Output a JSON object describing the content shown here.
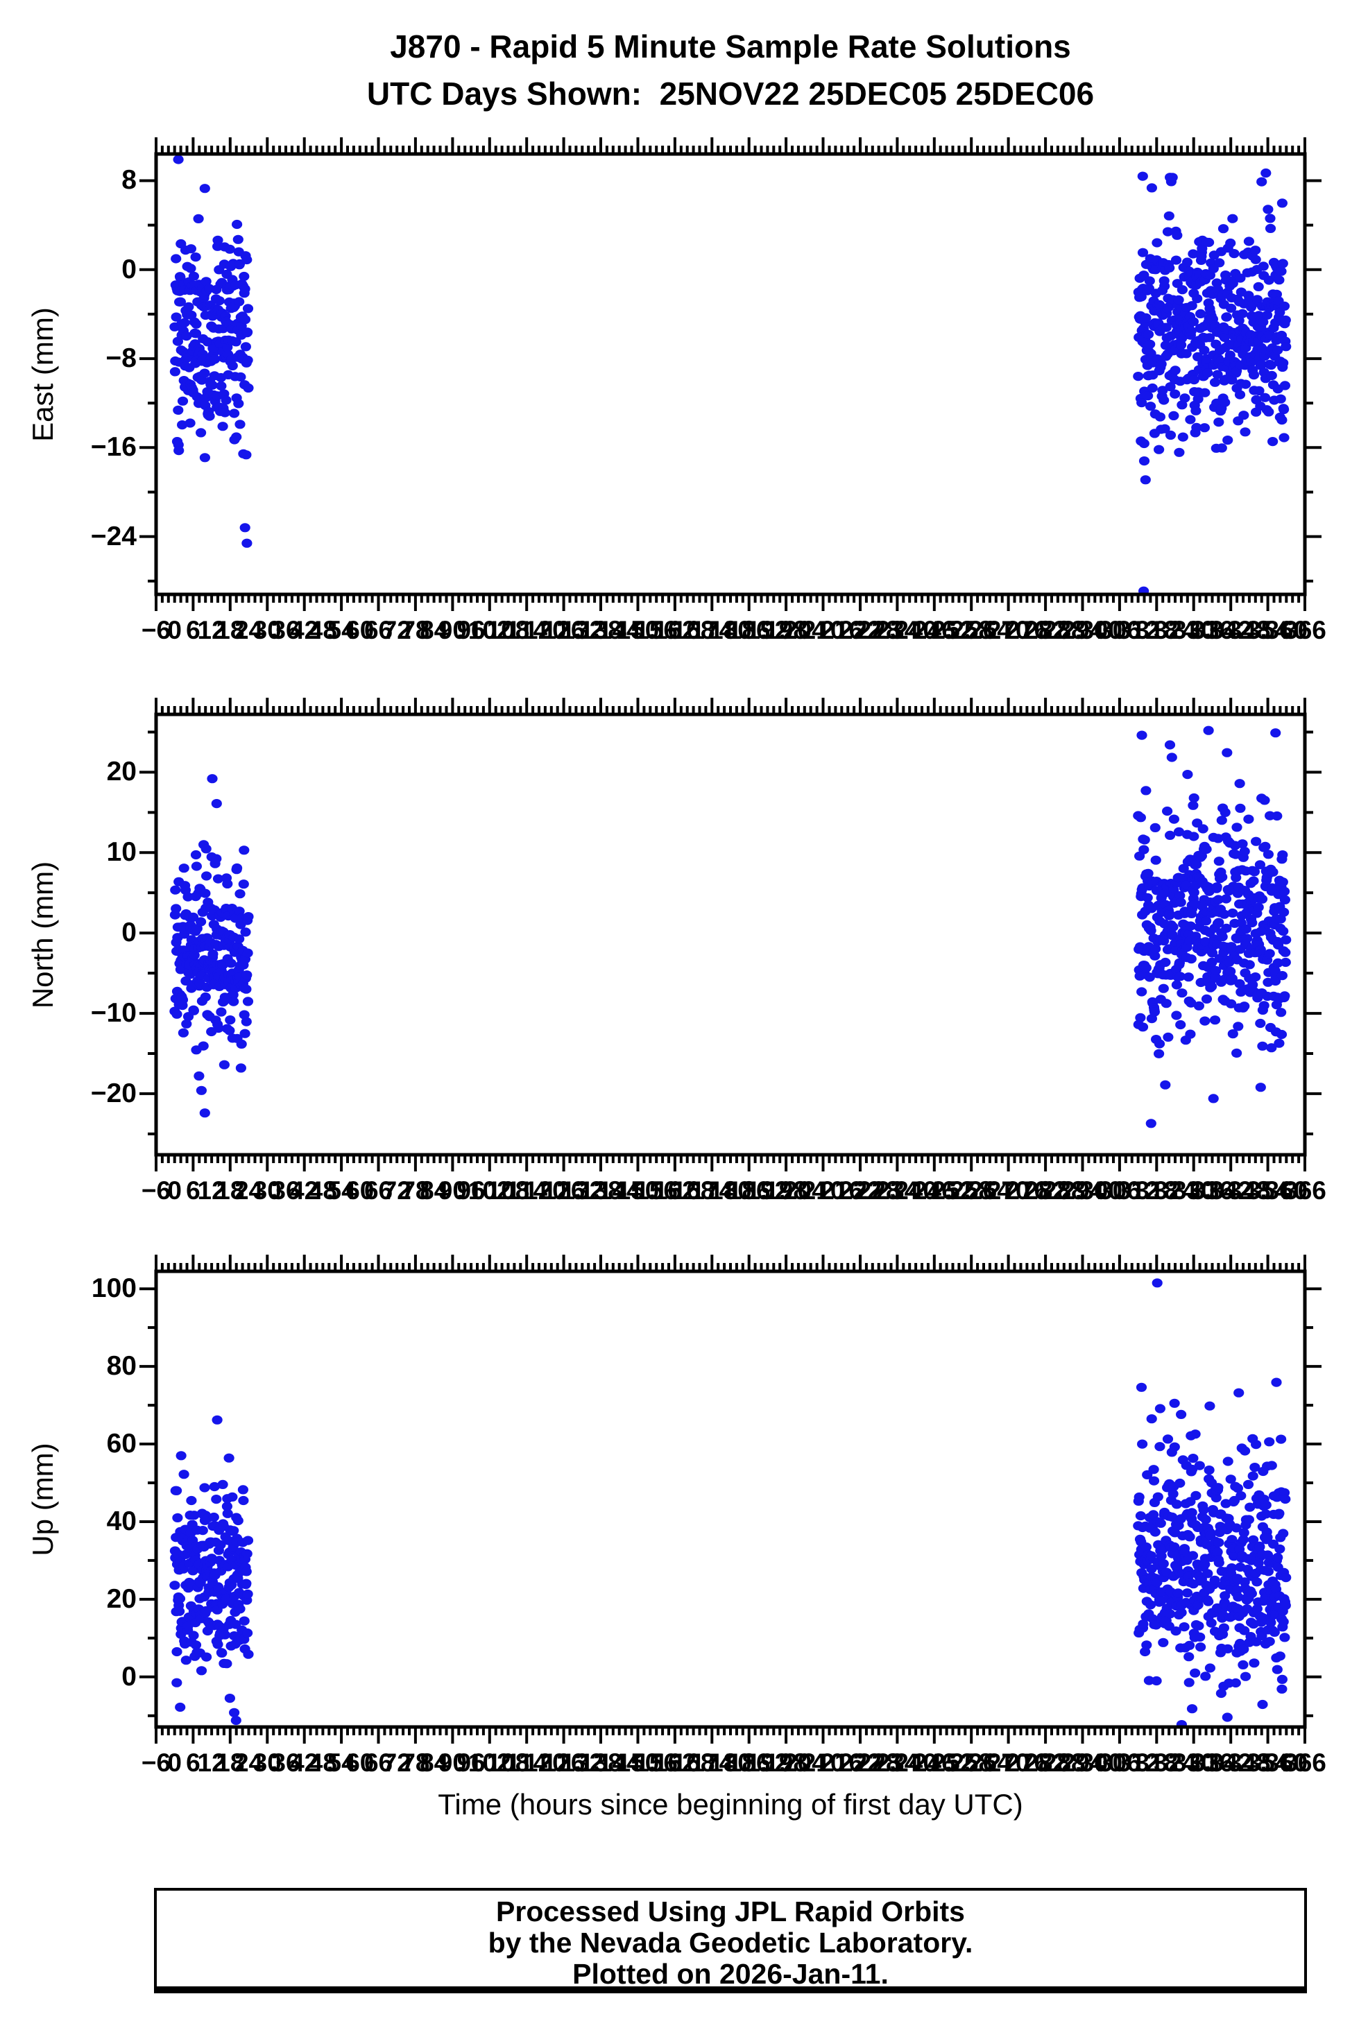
{
  "title": "J870 - Rapid 5 Minute Sample Rate Solutions",
  "subtitle": "UTC Days Shown:  25NOV22 25DEC05 25DEC06",
  "footer": {
    "lines": [
      "Processed Using JPL Rapid Orbits",
      "by the Nevada Geodetic Laboratory.",
      "Plotted on 2026-Jan-11."
    ]
  },
  "colors": {
    "point": "#1515eb",
    "axis": "#000000",
    "background": "#ffffff"
  },
  "chart_data": {
    "type": "scatter",
    "grid": false,
    "legend": null,
    "station": "J870",
    "xlabel": "Time (hours since beginning of first day UTC)",
    "x_axis": {
      "min": -6,
      "max": 366,
      "minor_tick_step": 2,
      "major_tick_step": 12,
      "tick_labels": [
        -6,
        0,
        6,
        12,
        18,
        24,
        30,
        36,
        42,
        48,
        54,
        60,
        66,
        72,
        78,
        84,
        90,
        96,
        102,
        108,
        114,
        120,
        126,
        132,
        138,
        144,
        150,
        156,
        162,
        168,
        174,
        180,
        186,
        192,
        198,
        204,
        210,
        216,
        222,
        228,
        234,
        240,
        246,
        252,
        258,
        264,
        270,
        276,
        282,
        288,
        294,
        300,
        306,
        312,
        318,
        324,
        330,
        336,
        342,
        348,
        354,
        360,
        366
      ]
    },
    "panels": [
      {
        "name": "East",
        "ylabel": "East (mm)",
        "y_min": -29.2,
        "y_max": 10.4,
        "y_tick_labels": [
          8,
          0,
          -8,
          -16,
          -24
        ],
        "y_minor_ticks": [
          4,
          -4,
          -12,
          -20,
          -28
        ],
        "clusters": [
          {
            "seed": 101,
            "hours": [
              0,
              23.92
            ],
            "n": 240,
            "mean": -6.0,
            "std": 4.6,
            "clip": [
              -17.0,
              8.6
            ]
          },
          {
            "seed": 102,
            "hours": [
              312,
              359.92
            ],
            "n": 480,
            "mean": -5.6,
            "std": 4.8,
            "clip": [
              -16.5,
              8.7
            ]
          }
        ],
        "outliers": [
          [
            1.2,
            9.9
          ],
          [
            9.8,
            7.3
          ],
          [
            22.8,
            -23.2
          ],
          [
            23.4,
            -24.6
          ],
          [
            313.5,
            8.4
          ],
          [
            352.0,
            7.9
          ],
          [
            314.0,
            -17.2
          ],
          [
            314.4,
            -18.9
          ],
          [
            313.8,
            -28.9
          ]
        ]
      },
      {
        "name": "North",
        "ylabel": "North (mm)",
        "y_min": -27.6,
        "y_max": 27.2,
        "y_tick_labels": [
          20,
          10,
          0,
          -10,
          -20
        ],
        "y_minor_ticks": [
          25,
          15,
          5,
          -5,
          -15,
          -25
        ],
        "clusters": [
          {
            "seed": 201,
            "hours": [
              0,
              23.92
            ],
            "n": 240,
            "mean": -2.5,
            "std": 6.2,
            "clip": [
              -15.0,
              12.0
            ]
          },
          {
            "seed": 202,
            "hours": [
              312,
              359.92
            ],
            "n": 480,
            "mean": 0.8,
            "std": 7.0,
            "clip": [
              -17.0,
              25.3
            ]
          }
        ],
        "outliers": [
          [
            12.2,
            19.2
          ],
          [
            13.6,
            16.1
          ],
          [
            8.7,
            -19.6
          ],
          [
            9.8,
            -22.4
          ],
          [
            7.9,
            -17.8
          ],
          [
            16.1,
            -16.4
          ],
          [
            21.5,
            -16.8
          ],
          [
            313.2,
            24.6
          ],
          [
            334.8,
            25.2
          ],
          [
            356.5,
            24.9
          ],
          [
            344.9,
            18.6
          ],
          [
            322.3,
            23.4
          ],
          [
            330.1,
            16.8
          ],
          [
            316.2,
            -23.7
          ],
          [
            320.8,
            -18.9
          ],
          [
            336.4,
            -20.6
          ],
          [
            351.7,
            -19.2
          ]
        ]
      },
      {
        "name": "Up",
        "ylabel": "Up (mm)",
        "y_min": -12.9,
        "y_max": 104.5,
        "y_tick_labels": [
          100,
          80,
          60,
          40,
          20,
          0
        ],
        "y_minor_ticks": [
          90,
          70,
          50,
          30,
          10,
          -10
        ],
        "clusters": [
          {
            "seed": 301,
            "hours": [
              0,
              23.92
            ],
            "n": 240,
            "mean": 25,
            "std": 11.0,
            "clip": [
              -3.0,
              56.0
            ]
          },
          {
            "seed": 302,
            "hours": [
              312,
              359.92
            ],
            "n": 480,
            "mean": 30,
            "std": 15.0,
            "clip": [
              -6.0,
              72.0
            ]
          }
        ],
        "outliers": [
          [
            13.8,
            66.2
          ],
          [
            17.6,
            56.4
          ],
          [
            2.1,
            57.0
          ],
          [
            3.0,
            52.2
          ],
          [
            0.7,
            -1.5
          ],
          [
            1.8,
            -7.8
          ],
          [
            17.9,
            -5.5
          ],
          [
            19.3,
            -9.2
          ],
          [
            19.9,
            -11.2
          ],
          [
            318.2,
            101.5
          ],
          [
            313.1,
            74.6
          ],
          [
            356.8,
            75.9
          ],
          [
            344.6,
            73.2
          ],
          [
            335.2,
            69.8
          ],
          [
            316.4,
            66.5
          ],
          [
            323.8,
            70.5
          ],
          [
            329.5,
            -8.2
          ],
          [
            340.9,
            -10.4
          ],
          [
            352.3,
            -7.1
          ],
          [
            326.1,
            -12.3
          ]
        ]
      }
    ]
  }
}
